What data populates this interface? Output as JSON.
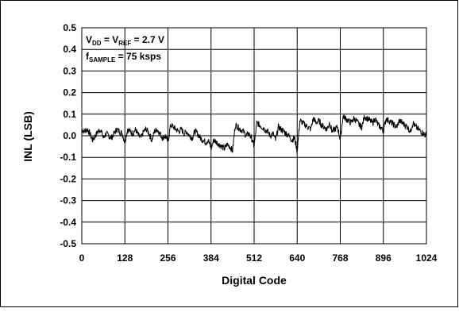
{
  "chart_data": {
    "type": "line",
    "title": "",
    "xlabel": "Digital Code",
    "ylabel": "INL (LSB)",
    "xlim": [
      0,
      1024
    ],
    "ylim": [
      -0.5,
      0.5
    ],
    "xticks": [
      0,
      128,
      256,
      384,
      512,
      640,
      768,
      896,
      1024
    ],
    "yticks": [
      -0.5,
      -0.4,
      -0.3,
      -0.2,
      -0.1,
      0.0,
      0.1,
      0.2,
      0.3,
      0.4,
      0.5
    ],
    "xtick_labels": [
      "0",
      "128",
      "256",
      "384",
      "512",
      "640",
      "768",
      "896",
      "1024"
    ],
    "ytick_labels": [
      "-0.5",
      "-0.4",
      "-0.3",
      "-0.2",
      "-0.1",
      "0.0",
      "0.1",
      "0.2",
      "0.3",
      "0.4",
      "0.5"
    ],
    "grid": true,
    "annotation": {
      "line1": {
        "v": "V",
        "dd": "DD",
        "eq1": " = V",
        "ref": "REF",
        "eq2": " = 2.7 V"
      },
      "line2": {
        "f": "f",
        "sample": "SAMPLE",
        "eq": " = 75 ksps"
      }
    },
    "series": [
      {
        "color": "#000000",
        "x": [
          0,
          8,
          16,
          24,
          32,
          40,
          48,
          56,
          64,
          72,
          80,
          88,
          96,
          104,
          112,
          120,
          128,
          136,
          144,
          152,
          160,
          168,
          176,
          184,
          192,
          200,
          208,
          216,
          224,
          232,
          240,
          248,
          256,
          264,
          272,
          280,
          288,
          296,
          304,
          312,
          320,
          328,
          336,
          344,
          352,
          360,
          368,
          376,
          384,
          392,
          400,
          408,
          416,
          424,
          432,
          440,
          448,
          456,
          464,
          472,
          480,
          488,
          496,
          504,
          512,
          520,
          528,
          536,
          544,
          552,
          560,
          568,
          576,
          584,
          592,
          600,
          608,
          616,
          624,
          632,
          640,
          648,
          656,
          664,
          672,
          680,
          688,
          696,
          704,
          712,
          720,
          728,
          736,
          744,
          752,
          760,
          768,
          776,
          784,
          792,
          800,
          808,
          816,
          824,
          832,
          840,
          848,
          856,
          864,
          872,
          880,
          888,
          896,
          904,
          912,
          920,
          928,
          936,
          944,
          952,
          960,
          968,
          976,
          984,
          992,
          1000,
          1008,
          1016,
          1023
        ],
        "y": [
          0.03,
          0.02,
          0.03,
          0.01,
          -0.02,
          0.0,
          0.02,
          0.03,
          -0.01,
          0.01,
          0.0,
          -0.01,
          0.01,
          0.03,
          0.02,
          0.01,
          -0.03,
          0.03,
          0.02,
          0.01,
          0.03,
          0.0,
          -0.01,
          0.02,
          0.03,
          0.01,
          -0.02,
          0.02,
          0.03,
          0.01,
          -0.01,
          0.0,
          -0.03,
          0.05,
          0.04,
          0.03,
          0.02,
          0.03,
          0.01,
          0.02,
          0.0,
          -0.01,
          0.02,
          0.01,
          -0.01,
          -0.02,
          -0.03,
          -0.02,
          -0.06,
          -0.02,
          -0.03,
          -0.04,
          -0.05,
          -0.06,
          -0.04,
          -0.05,
          -0.07,
          0.05,
          0.04,
          0.03,
          0.02,
          0.0,
          0.01,
          -0.01,
          -0.05,
          0.06,
          0.05,
          0.04,
          0.03,
          0.02,
          0.0,
          0.01,
          -0.02,
          0.04,
          0.03,
          0.02,
          0.01,
          0.0,
          -0.02,
          -0.01,
          -0.07,
          0.07,
          0.06,
          0.05,
          0.04,
          0.03,
          0.08,
          0.06,
          0.07,
          0.05,
          0.04,
          0.03,
          0.06,
          0.02,
          0.03,
          0.04,
          -0.02,
          0.09,
          0.08,
          0.07,
          0.06,
          0.08,
          0.07,
          0.05,
          0.04,
          0.09,
          0.08,
          0.07,
          0.06,
          0.08,
          0.05,
          0.04,
          0.02,
          0.08,
          0.07,
          0.06,
          0.05,
          0.04,
          0.07,
          0.06,
          0.05,
          0.04,
          0.02,
          0.06,
          0.04,
          0.03,
          0.02,
          0.01,
          0.0
        ]
      }
    ]
  }
}
